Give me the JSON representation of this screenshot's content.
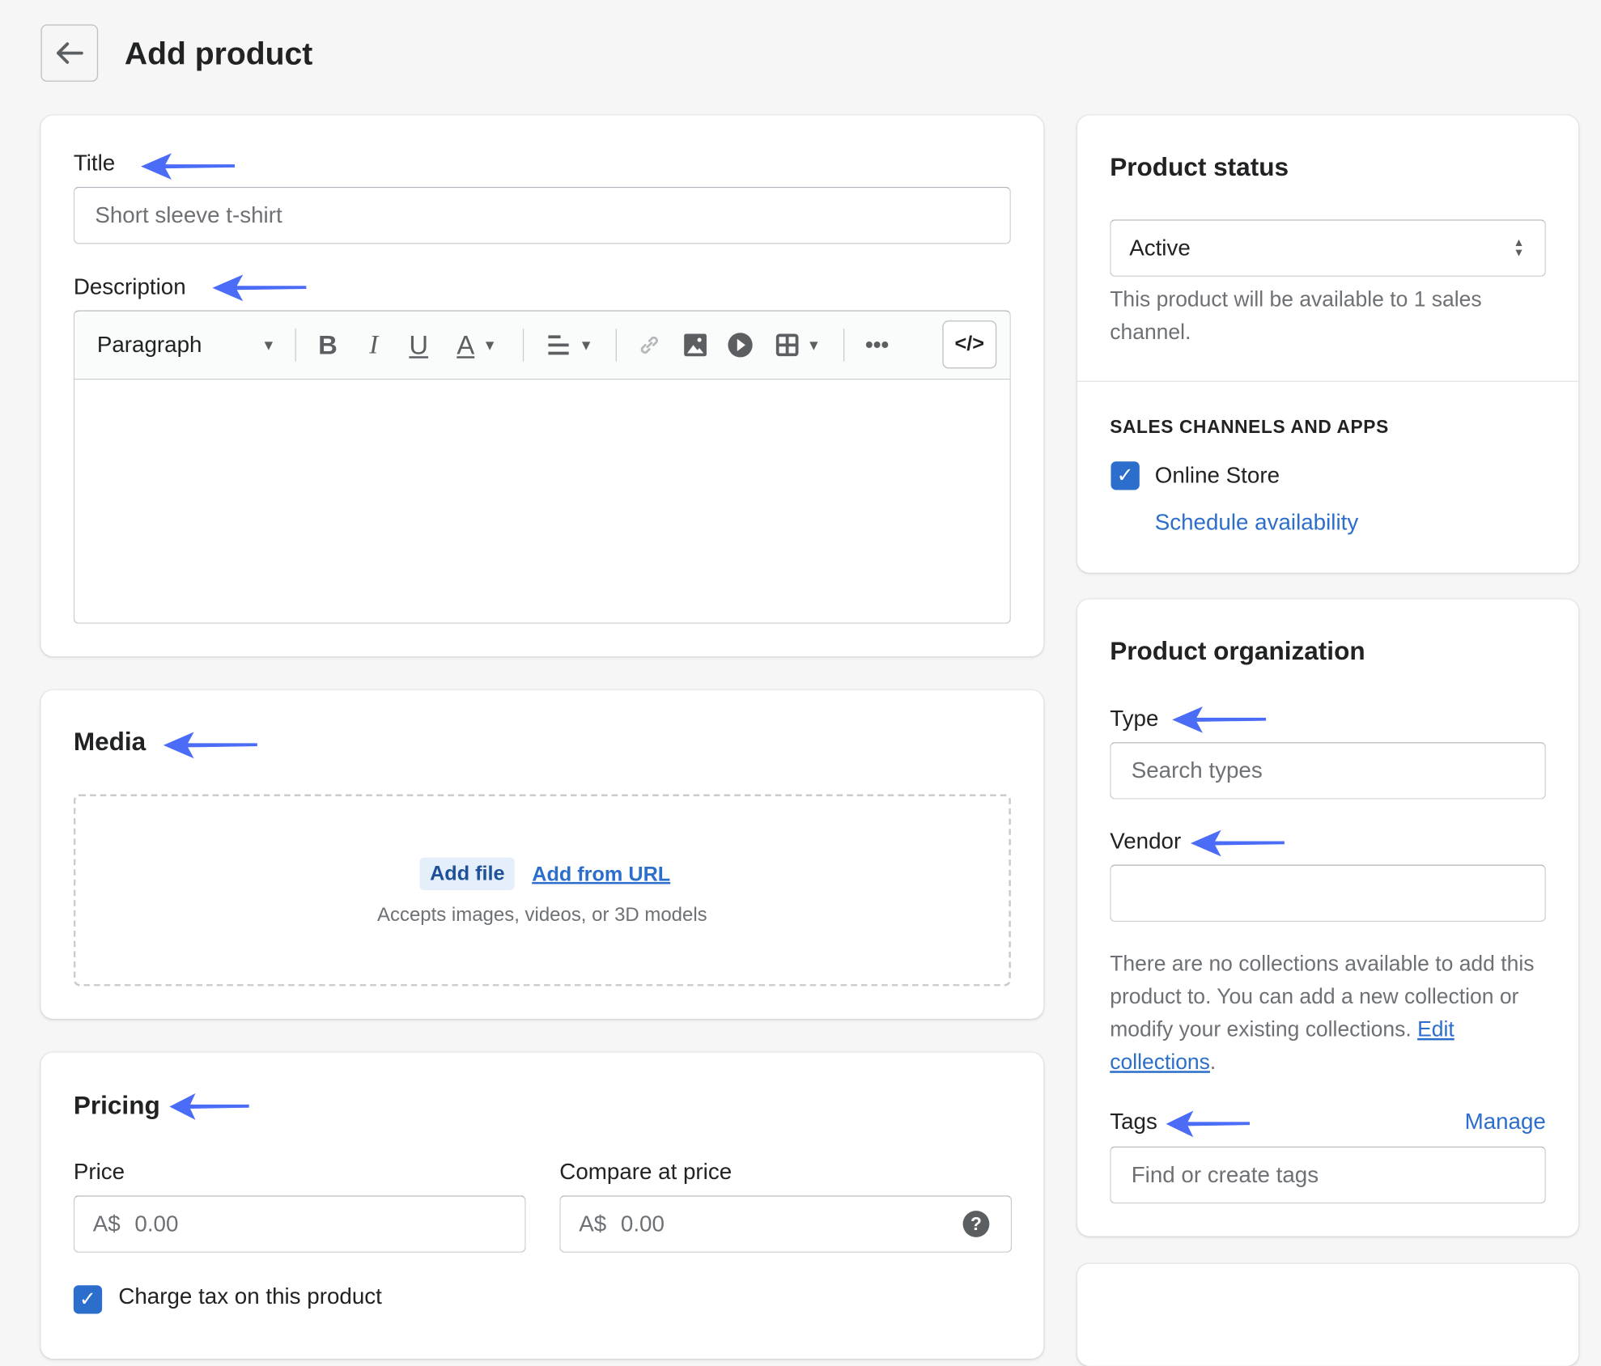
{
  "header": {
    "title": "Add product",
    "back_icon": "arrow-left-icon"
  },
  "main": {
    "title_label": "Title",
    "title_placeholder": "Short sleeve t-shirt",
    "description_label": "Description",
    "toolbar": {
      "format": "Paragraph",
      "icons": [
        "bold-icon",
        "italic-icon",
        "underline-icon",
        "text-color-icon",
        "align-icon",
        "link-icon",
        "image-icon",
        "video-icon",
        "table-icon",
        "more-icon",
        "code-icon"
      ]
    },
    "media": {
      "heading": "Media",
      "add_file": "Add file",
      "add_url": "Add from URL",
      "accepts": "Accepts images, videos, or 3D models"
    },
    "pricing": {
      "heading": "Pricing",
      "price_label": "Price",
      "price_prefix": "A$",
      "price_placeholder": "0.00",
      "compare_label": "Compare at price",
      "compare_prefix": "A$",
      "compare_placeholder": "0.00",
      "charge_tax": "Charge tax on this product",
      "charge_tax_checked": true
    }
  },
  "status": {
    "heading": "Product status",
    "value": "Active",
    "help": "This product will be available to 1 sales channel.",
    "channels_heading": "SALES CHANNELS AND APPS",
    "online_store": "Online Store",
    "online_store_checked": true,
    "schedule": "Schedule availability"
  },
  "organization": {
    "heading": "Product organization",
    "type_label": "Type",
    "type_placeholder": "Search types",
    "vendor_label": "Vendor",
    "vendor_value": "",
    "collections_text": "There are no collections available to add this product to. You can add a new collection or modify your existing collections. ",
    "edit_collections": "Edit collections",
    "period": ".",
    "tags_label": "Tags",
    "manage": "Manage",
    "tags_placeholder": "Find or create tags"
  },
  "colors": {
    "annotation_arrow": "#4a6cf7",
    "link": "#2c6ecb",
    "checkbox": "#2c6ecb"
  }
}
